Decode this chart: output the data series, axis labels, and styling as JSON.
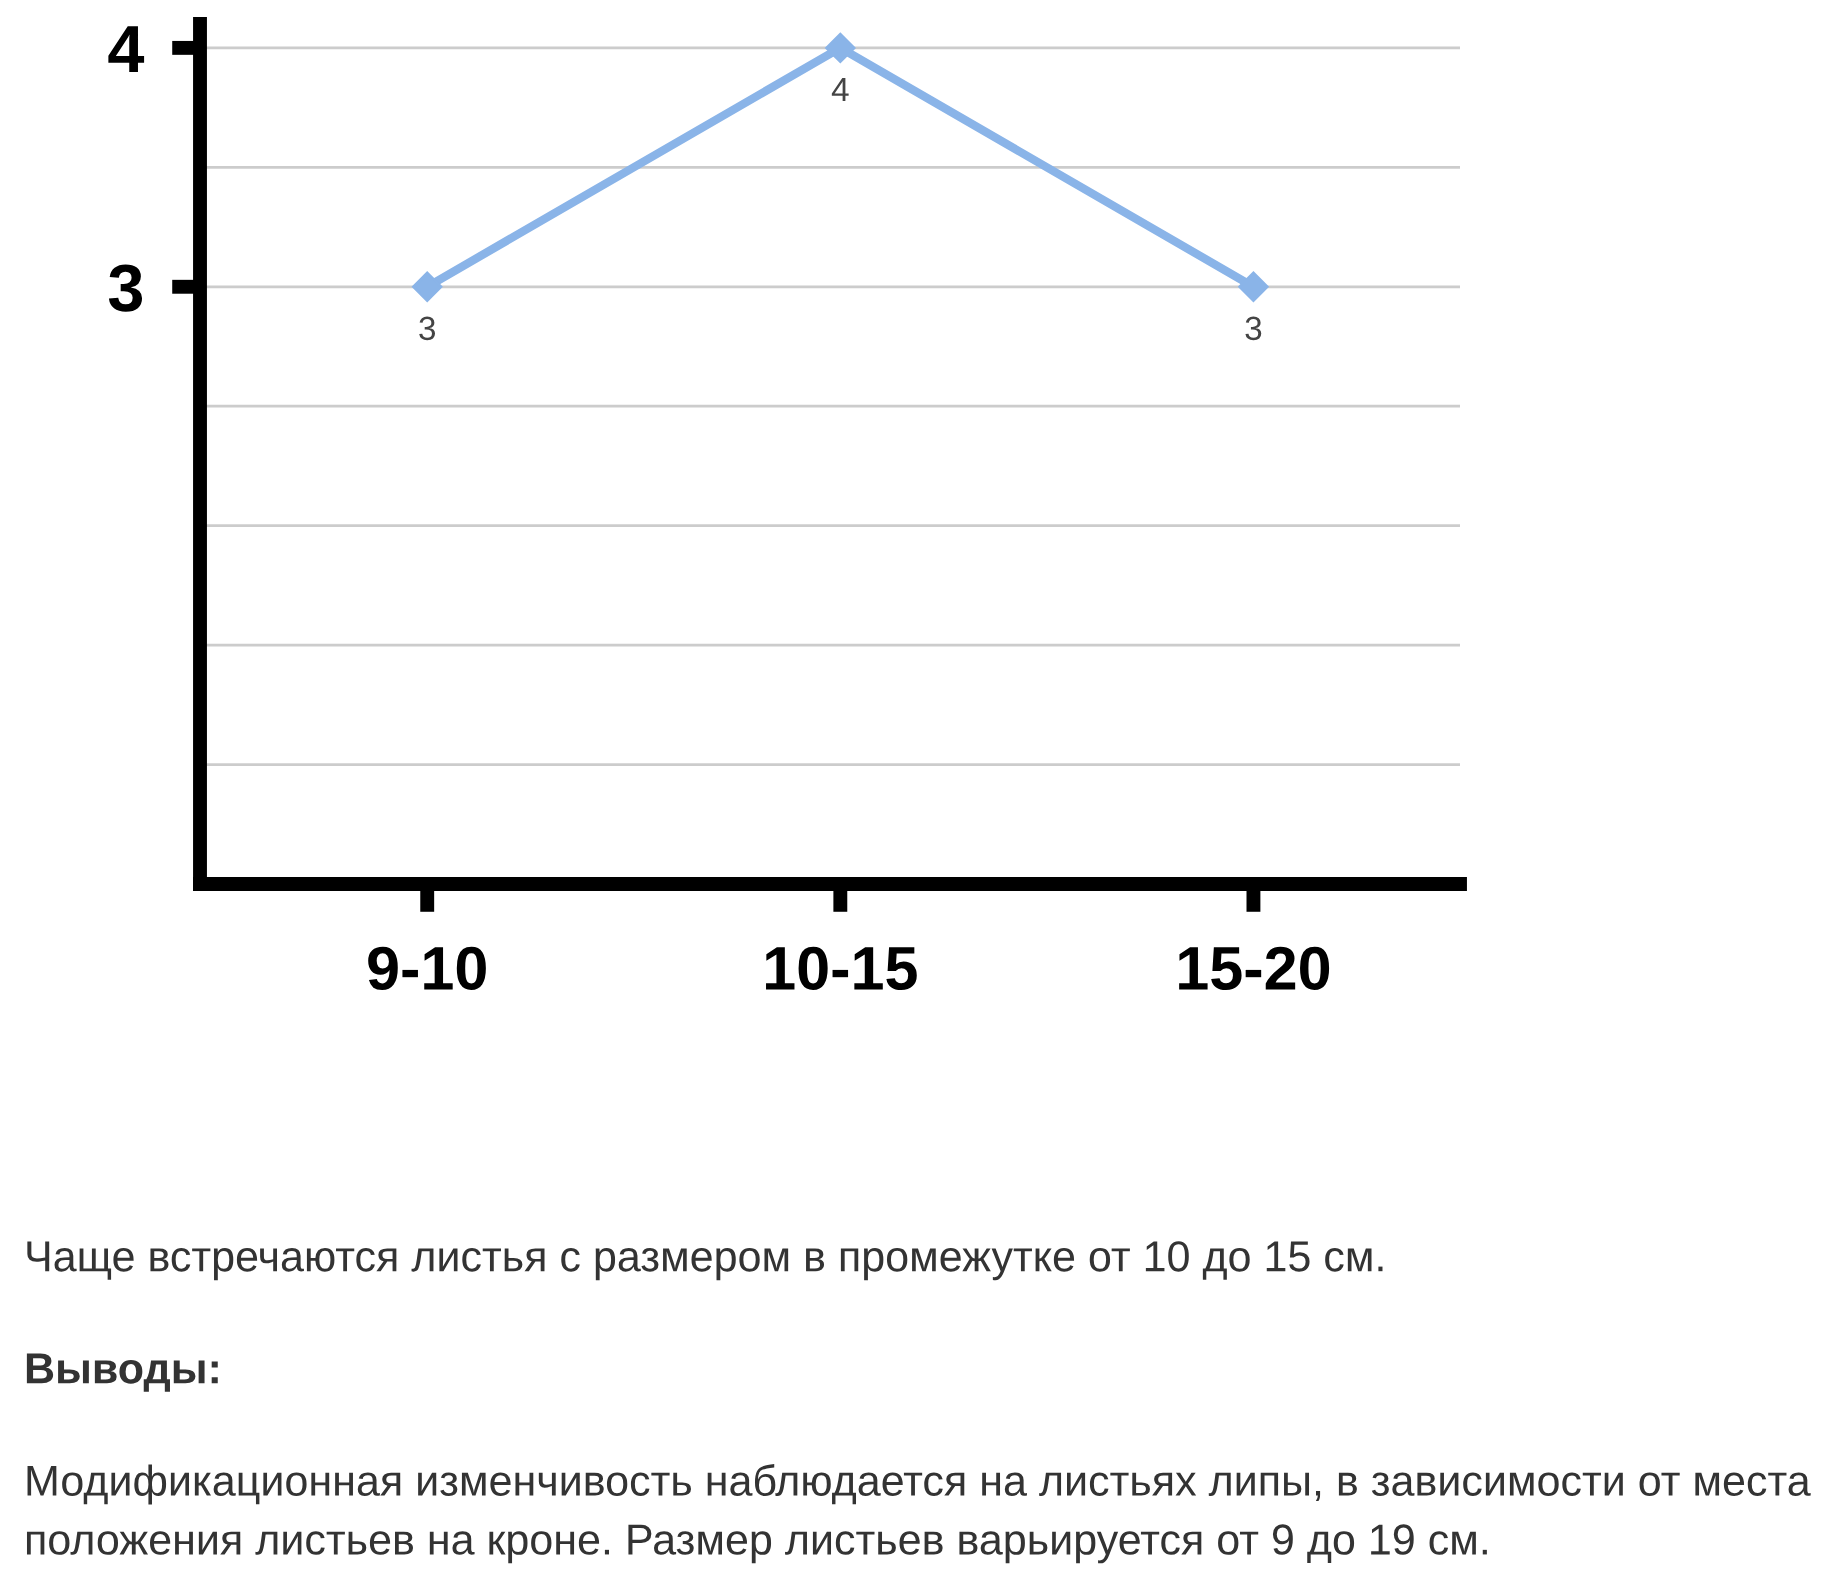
{
  "chart_data": {
    "type": "line",
    "categories": [
      "9-10",
      "10-15",
      "15-20"
    ],
    "series": [
      {
        "color": "#8ab4e8",
        "values": [
          3,
          4,
          3
        ]
      }
    ],
    "data_labels": true,
    "marker": "diamond",
    "line_style": "solid",
    "grid": "y",
    "ylim": [
      0.5,
      4.1
    ],
    "yticks": [
      {
        "value": 1,
        "label": null
      },
      {
        "value": 1.5,
        "label": null
      },
      {
        "value": 2,
        "label": null
      },
      {
        "value": 2.5,
        "label": null
      },
      3,
      {
        "value": 3.5,
        "label": null
      },
      4
    ],
    "annotations": [
      "Чаще встречаются листья с размером в промежутке от 10 до 15 см.",
      "Выводы:",
      "Модификационная изменчивость наблюдается на листьях липы, в зависимости от места положения листьев на кроне. Размер листьев варьируется от 9 до 19 см."
    ]
  }
}
